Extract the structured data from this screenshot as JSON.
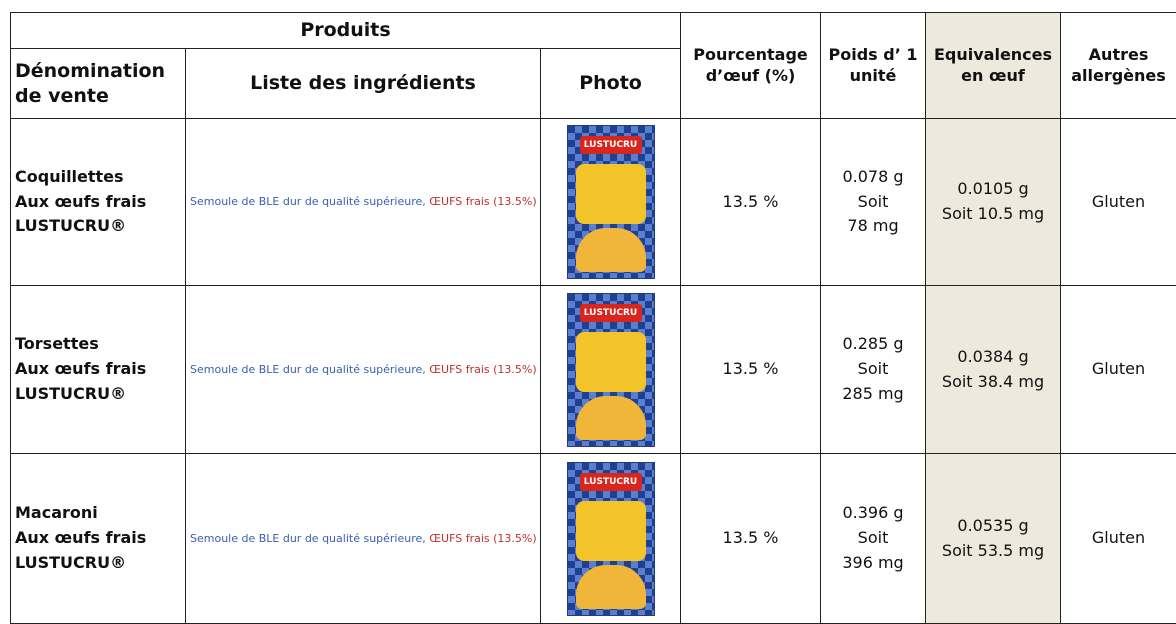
{
  "header": {
    "products": "Produits",
    "name": [
      "Dénomination",
      "de vente"
    ],
    "ingredients": "Liste des ingrédients",
    "photo": "Photo",
    "percentage": [
      "Pourcentage",
      "d’œuf (%)"
    ],
    "weight": [
      "Poids d’ 1",
      "unité"
    ],
    "equivalence": [
      "Equivalences",
      "en œuf"
    ],
    "allergens": [
      "Autres",
      "allergènes"
    ]
  },
  "table": {
    "rows": [
      {
        "name": [
          "Coquillettes",
          "Aux œufs frais",
          "LUSTUCRU®"
        ],
        "ingredients_base": "Semoule de BLE dur de qualité supérieure, ",
        "ingredients_egg": "ŒUFS frais (13.5%)",
        "photo_brand": "LUSTUCRU",
        "percentage": "13.5 %",
        "weight": [
          "0.078 g",
          "Soit",
          "78 mg"
        ],
        "equivalence": [
          "0.0105 g",
          "Soit 10.5 mg"
        ],
        "allergens": "Gluten"
      },
      {
        "name": [
          "Torsettes",
          "Aux œufs frais",
          "LUSTUCRU®"
        ],
        "ingredients_base": "Semoule de BLE dur de qualité supérieure, ",
        "ingredients_egg": "ŒUFS frais (13.5%)",
        "photo_brand": "LUSTUCRU",
        "percentage": "13.5 %",
        "weight": [
          "0.285 g",
          "Soit",
          "285 mg"
        ],
        "equivalence": [
          "0.0384 g",
          "Soit 38.4 mg"
        ],
        "allergens": "Gluten"
      },
      {
        "name": [
          "Macaroni",
          "Aux œufs frais",
          "LUSTUCRU®"
        ],
        "ingredients_base": "Semoule de BLE dur de qualité supérieure, ",
        "ingredients_egg": "ŒUFS frais (13.5%)",
        "photo_brand": "LUSTUCRU",
        "percentage": "13.5 %",
        "weight": [
          "0.396 g",
          "Soit",
          "396 mg"
        ],
        "equivalence": [
          "0.0535 g",
          "Soit 53.5 mg"
        ],
        "allergens": "Gluten"
      }
    ]
  }
}
